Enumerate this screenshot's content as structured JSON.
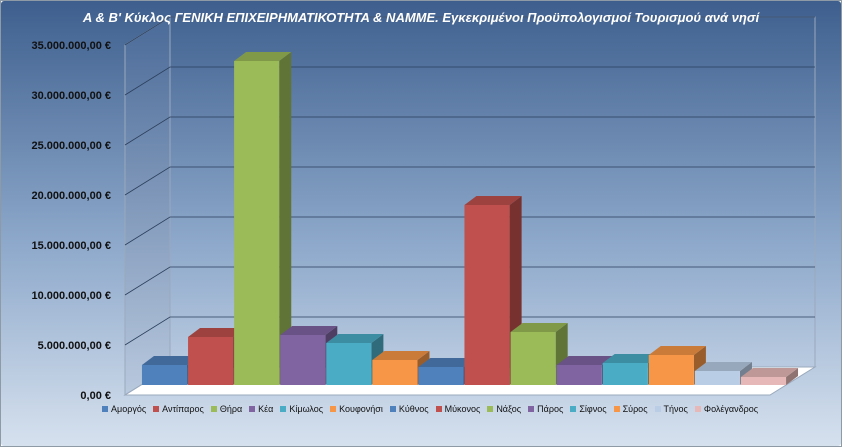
{
  "chart_data": {
    "type": "bar",
    "title": "Α & Β' Κύκλος ΓΕΝΙΚΗ ΕΠΙΧΕΙΡΗΜΑΤΙΚΟΤΗΤΑ & ΝΑΜΜΕ. Εγκεκριμένοι Προϋπολογισμοί  Τουρισμού ανά νησί",
    "xlabel": "",
    "ylabel": "",
    "ylim": [
      0,
      35000000
    ],
    "yticks": [
      "0,00 €",
      "5.000.000,00 €",
      "10.000.000,00 €",
      "15.000.000,00 €",
      "20.000.000,00 €",
      "25.000.000,00 €",
      "30.000.000,00 €",
      "35.000.000,00 €"
    ],
    "grid": true,
    "legend_position": "bottom",
    "categories": [
      "Αμοργός",
      "Αντίπαρος",
      "Θήρα",
      "Κέα",
      "Κίμωλος",
      "Κουφονήσι",
      "Κύθνος",
      "Μύκονος",
      "Νάξος",
      "Πάρος",
      "Σίφνος",
      "Σύρος",
      "Τήνος",
      "Φολέγανδρος"
    ],
    "values": [
      1600000,
      4400000,
      32000000,
      4600000,
      3800000,
      2100000,
      1400000,
      17600000,
      4900000,
      1600000,
      1800000,
      2600000,
      1000000,
      400000
    ],
    "colors": [
      "#4f81bd",
      "#c0504d",
      "#9bbb59",
      "#8064a2",
      "#4bacc6",
      "#f79646",
      "#4f81bd",
      "#c0504d",
      "#9bbb59",
      "#8064a2",
      "#4bacc6",
      "#f79646",
      "#b9cde5",
      "#e6b9b8"
    ]
  }
}
